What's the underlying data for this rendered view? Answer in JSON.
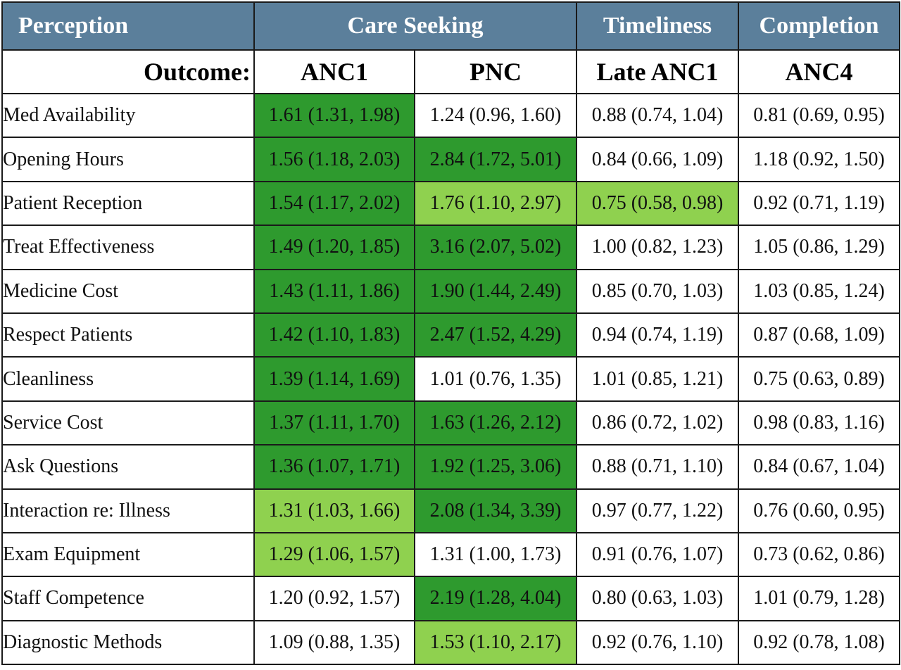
{
  "header": {
    "perception": "Perception",
    "care_seeking": "Care Seeking",
    "timeliness": "Timeliness",
    "completion": "Completion"
  },
  "outcomes": {
    "label": "Outcome:",
    "anc1": "ANC1",
    "pnc": "PNC",
    "late_anc1": "Late ANC1",
    "anc4": "ANC4"
  },
  "colors": {
    "header_bg": "#5b7f9b",
    "significant_strong": "#2e9a2e",
    "significant_weak": "#8fd14f"
  },
  "rows": [
    {
      "label": "Med Availability",
      "anc1": "1.61 (1.31, 1.98)",
      "pnc": "1.24 (0.96, 1.60)",
      "late_anc1": "0.88 (0.74, 1.04)",
      "anc4": "0.81 (0.69, 0.95)"
    },
    {
      "label": "Opening Hours",
      "anc1": "1.56 (1.18, 2.03)",
      "pnc": "2.84 (1.72, 5.01)",
      "late_anc1": "0.84 (0.66, 1.09)",
      "anc4": "1.18 (0.92, 1.50)"
    },
    {
      "label": "Patient Reception",
      "anc1": "1.54 (1.17, 2.02)",
      "pnc": "1.76 (1.10, 2.97)",
      "late_anc1": "0.75 (0.58, 0.98)",
      "anc4": "0.92 (0.71, 1.19)"
    },
    {
      "label": "Treat Effectiveness",
      "anc1": "1.49 (1.20, 1.85)",
      "pnc": "3.16 (2.07, 5.02)",
      "late_anc1": "1.00 (0.82, 1.23)",
      "anc4": "1.05 (0.86, 1.29)"
    },
    {
      "label": "Medicine Cost",
      "anc1": "1.43 (1.11, 1.86)",
      "pnc": "1.90 (1.44, 2.49)",
      "late_anc1": "0.85 (0.70, 1.03)",
      "anc4": "1.03 (0.85, 1.24)"
    },
    {
      "label": "Respect Patients",
      "anc1": "1.42 (1.10, 1.83)",
      "pnc": "2.47 (1.52, 4.29)",
      "late_anc1": "0.94 (0.74, 1.19)",
      "anc4": "0.87 (0.68, 1.09)"
    },
    {
      "label": "Cleanliness",
      "anc1": "1.39 (1.14, 1.69)",
      "pnc": "1.01 (0.76, 1.35)",
      "late_anc1": "1.01 (0.85, 1.21)",
      "anc4": "0.75 (0.63, 0.89)"
    },
    {
      "label": "Service Cost",
      "anc1": "1.37 (1.11, 1.70)",
      "pnc": "1.63 (1.26, 2.12)",
      "late_anc1": "0.86 (0.72, 1.02)",
      "anc4": "0.98 (0.83, 1.16)"
    },
    {
      "label": "Ask Questions",
      "anc1": "1.36 (1.07, 1.71)",
      "pnc": "1.92 (1.25, 3.06)",
      "late_anc1": "0.88 (0.71, 1.10)",
      "anc4": "0.84 (0.67, 1.04)"
    },
    {
      "label": "Interaction re: Illness",
      "anc1": "1.31 (1.03, 1.66)",
      "pnc": "2.08 (1.34, 3.39)",
      "late_anc1": "0.97 (0.77, 1.22)",
      "anc4": "0.76 (0.60, 0.95)"
    },
    {
      "label": "Exam Equipment",
      "anc1": "1.29 (1.06, 1.57)",
      "pnc": "1.31 (1.00, 1.73)",
      "late_anc1": "0.91 (0.76, 1.07)",
      "anc4": "0.73 (0.62, 0.86)"
    },
    {
      "label": "Staff Competence",
      "anc1": "1.20 (0.92, 1.57)",
      "pnc": "2.19 (1.28, 4.04)",
      "late_anc1": "0.80 (0.63, 1.03)",
      "anc4": "1.01 (0.79, 1.28)"
    },
    {
      "label": "Diagnostic Methods",
      "anc1": "1.09 (0.88, 1.35)",
      "pnc": "1.53 (1.10, 2.17)",
      "late_anc1": "0.92 (0.76, 1.10)",
      "anc4": "0.92 (0.78, 1.08)"
    }
  ]
}
